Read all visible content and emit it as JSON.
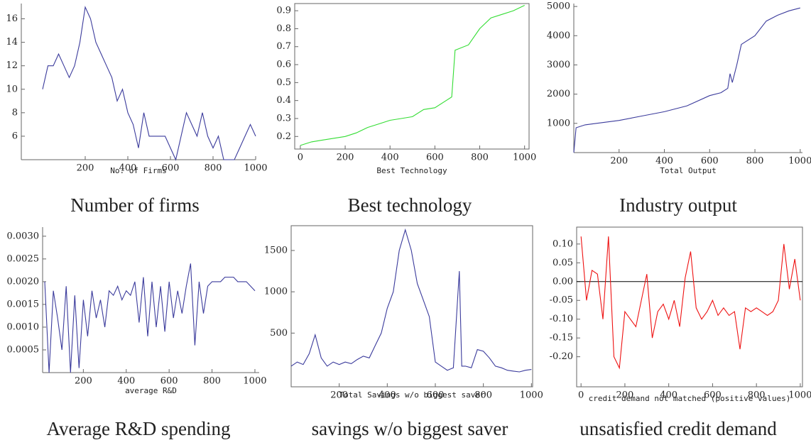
{
  "chart_data": [
    {
      "type": "line",
      "xlabel": "No. of Firms",
      "caption": "Number of firms",
      "frame": false,
      "color": "#3b3b9c",
      "x": [
        0,
        25,
        50,
        75,
        100,
        125,
        150,
        175,
        200,
        225,
        250,
        275,
        300,
        325,
        350,
        375,
        400,
        425,
        450,
        475,
        500,
        525,
        550,
        575,
        600,
        625,
        650,
        675,
        700,
        725,
        750,
        775,
        800,
        825,
        850,
        875,
        900,
        925,
        950,
        975,
        1000
      ],
      "values": [
        10,
        12,
        12,
        13,
        12,
        11,
        12,
        14,
        17,
        16,
        14,
        13,
        12,
        11,
        9,
        10,
        8,
        7,
        5,
        8,
        6,
        6,
        6,
        6,
        5,
        4,
        6,
        8,
        7,
        6,
        8,
        6,
        5,
        6,
        4,
        4,
        4,
        5,
        6,
        7,
        6
      ],
      "xlim": [
        -100,
        1000
      ],
      "ylim": [
        4,
        17.3
      ],
      "xticks": [
        200,
        400,
        600,
        800,
        1000
      ],
      "yticks": [
        6,
        8,
        10,
        12,
        14,
        16
      ]
    },
    {
      "type": "line",
      "xlabel": "Best Technology",
      "caption": "Best technology",
      "frame": true,
      "color": "#33dd33",
      "x": [
        0,
        50,
        100,
        150,
        200,
        250,
        300,
        350,
        400,
        450,
        500,
        550,
        600,
        650,
        675,
        690,
        750,
        800,
        850,
        900,
        950,
        1000
      ],
      "values": [
        0.15,
        0.17,
        0.18,
        0.19,
        0.2,
        0.22,
        0.25,
        0.27,
        0.29,
        0.3,
        0.31,
        0.35,
        0.36,
        0.4,
        0.42,
        0.68,
        0.71,
        0.8,
        0.86,
        0.88,
        0.9,
        0.93
      ],
      "xlim": [
        -25,
        1020
      ],
      "ylim": [
        0.13,
        0.94
      ],
      "xticks": [
        0,
        200,
        400,
        600,
        800,
        1000
      ],
      "yticks": [
        0.2,
        0.3,
        0.4,
        0.5,
        0.6,
        0.7,
        0.8,
        0.9
      ]
    },
    {
      "type": "line",
      "xlabel": "Total Output",
      "caption": "Industry output",
      "frame": false,
      "color": "#3b3b9c",
      "x": [
        0,
        10,
        50,
        100,
        200,
        300,
        400,
        500,
        600,
        650,
        680,
        690,
        700,
        720,
        740,
        800,
        850,
        900,
        950,
        1000
      ],
      "values": [
        0,
        850,
        950,
        1000,
        1100,
        1250,
        1400,
        1600,
        1950,
        2050,
        2200,
        2700,
        2400,
        3000,
        3700,
        4000,
        4500,
        4700,
        4850,
        4950
      ],
      "xlim": [
        0,
        1010
      ],
      "ylim": [
        0,
        5100
      ],
      "xticks": [
        200,
        400,
        600,
        800,
        1000
      ],
      "yticks": [
        1000,
        2000,
        3000,
        4000,
        5000
      ]
    },
    {
      "type": "line",
      "xlabel": "average R&D",
      "caption": "Average R&D spending",
      "frame": false,
      "color": "#3b3b9c",
      "x": [
        20,
        40,
        60,
        80,
        100,
        120,
        140,
        160,
        180,
        200,
        220,
        240,
        260,
        280,
        300,
        320,
        340,
        360,
        380,
        400,
        420,
        440,
        460,
        480,
        500,
        520,
        540,
        560,
        580,
        600,
        620,
        640,
        660,
        680,
        700,
        720,
        740,
        760,
        780,
        800,
        820,
        840,
        860,
        880,
        900,
        920,
        940,
        960,
        980,
        1000
      ],
      "values": [
        0.002,
        0,
        0.0018,
        0.0012,
        0.0005,
        0.0019,
        0,
        0.0017,
        0.0001,
        0.0016,
        0.0008,
        0.0018,
        0.0012,
        0.0016,
        0.001,
        0.0018,
        0.0017,
        0.0019,
        0.0016,
        0.0018,
        0.0017,
        0.002,
        0.0011,
        0.0021,
        0.0008,
        0.002,
        0.001,
        0.0019,
        0.0009,
        0.002,
        0.0012,
        0.0018,
        0.0013,
        0.0019,
        0.0024,
        0.0006,
        0.002,
        0.0013,
        0.0019,
        0.002,
        0.002,
        0.002,
        0.0021,
        0.0021,
        0.0021,
        0.002,
        0.002,
        0.002,
        0.0019,
        0.0018
      ],
      "xlim": [
        10,
        1020
      ],
      "ylim": [
        0,
        0.0032
      ],
      "xticks": [
        200,
        400,
        600,
        800,
        1000
      ],
      "yticks": [
        0.0005,
        {
          "value": 0.001,
          "label": "0.0010"
        },
        0.0015,
        {
          "value": 0.002,
          "label": "0.0020"
        },
        0.0025,
        {
          "value": 0.003,
          "label": "0.0030"
        }
      ]
    },
    {
      "type": "line",
      "xlabel": "Total Savings w/o biggest saver",
      "caption": "savings w/o biggest saver",
      "frame": true,
      "color": "#3b3b9c",
      "x": [
        0,
        25,
        50,
        75,
        100,
        125,
        150,
        175,
        200,
        225,
        250,
        275,
        300,
        325,
        350,
        375,
        400,
        425,
        450,
        475,
        500,
        525,
        550,
        575,
        600,
        625,
        650,
        675,
        700,
        710,
        725,
        750,
        775,
        800,
        825,
        850,
        875,
        900,
        925,
        950,
        975,
        1000
      ],
      "values": [
        100,
        150,
        120,
        250,
        480,
        200,
        100,
        150,
        120,
        150,
        130,
        180,
        220,
        200,
        350,
        500,
        800,
        1000,
        1500,
        1750,
        1500,
        1100,
        900,
        700,
        150,
        100,
        50,
        80,
        1250,
        100,
        100,
        80,
        300,
        280,
        200,
        100,
        80,
        50,
        40,
        30,
        50,
        60
      ],
      "xlim": [
        0,
        1005
      ],
      "ylim": [
        -150,
        1800
      ],
      "xticks": [
        200,
        400,
        600,
        800,
        1000
      ],
      "yticks": [
        500,
        1000,
        1500
      ]
    },
    {
      "type": "line",
      "xlabel": "credit demand not matched (positive values)",
      "caption": "unsatisfied credit demand",
      "frame": true,
      "color": "#ee1111",
      "reference_line": 0,
      "x": [
        0,
        25,
        50,
        75,
        100,
        125,
        150,
        175,
        200,
        225,
        250,
        275,
        300,
        325,
        350,
        375,
        400,
        425,
        450,
        475,
        500,
        525,
        550,
        575,
        600,
        625,
        650,
        675,
        700,
        725,
        750,
        775,
        800,
        825,
        850,
        875,
        900,
        925,
        950,
        975,
        1000
      ],
      "values": [
        0.12,
        -0.05,
        0.03,
        0.02,
        -0.1,
        0.12,
        -0.2,
        -0.23,
        -0.08,
        -0.1,
        -0.12,
        -0.05,
        0.02,
        -0.15,
        -0.08,
        -0.06,
        -0.1,
        -0.05,
        -0.12,
        0.01,
        0.08,
        -0.07,
        -0.1,
        -0.08,
        -0.05,
        -0.09,
        -0.07,
        -0.09,
        -0.08,
        -0.18,
        -0.07,
        -0.08,
        -0.07,
        -0.08,
        -0.09,
        -0.08,
        -0.05,
        0.1,
        -0.02,
        0.06,
        -0.05
      ],
      "xlim": [
        -20,
        1010
      ],
      "ylim": [
        -0.28,
        0.145
      ],
      "xticks": [
        0,
        200,
        400,
        600,
        800,
        1000
      ],
      "yticks": [
        {
          "value": 0.1,
          "label": "0.10"
        },
        0.05,
        {
          "value": 0,
          "label": "0.00"
        },
        -0.05,
        {
          "value": -0.1,
          "label": "-0.10"
        },
        -0.15,
        {
          "value": -0.2,
          "label": "-0.20"
        }
      ]
    }
  ]
}
